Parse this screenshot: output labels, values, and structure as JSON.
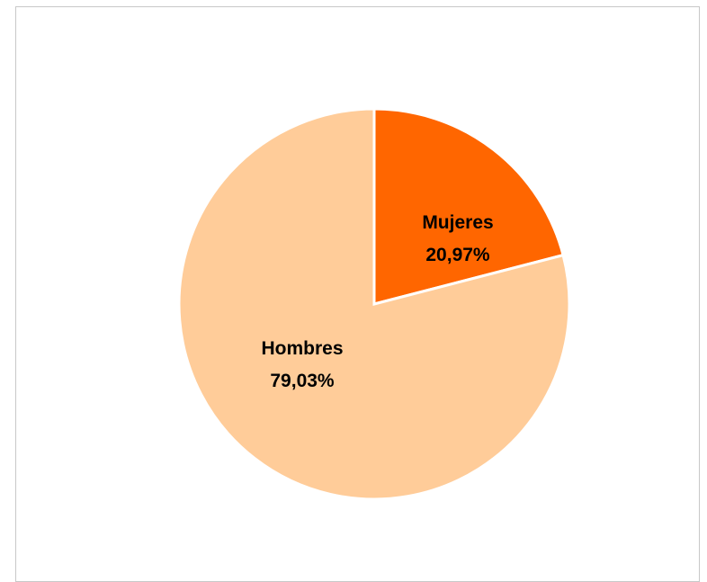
{
  "chart_data": {
    "type": "pie",
    "slices": [
      {
        "label": "Mujeres",
        "percent_label": "20,97%",
        "value": 20.97,
        "color": "#ff6600"
      },
      {
        "label": "Hombres",
        "percent_label": "79,03%",
        "value": 79.03,
        "color": "#ffcc99"
      }
    ],
    "start": "12 o'clock",
    "direction": "clockwise",
    "legend": "none"
  }
}
